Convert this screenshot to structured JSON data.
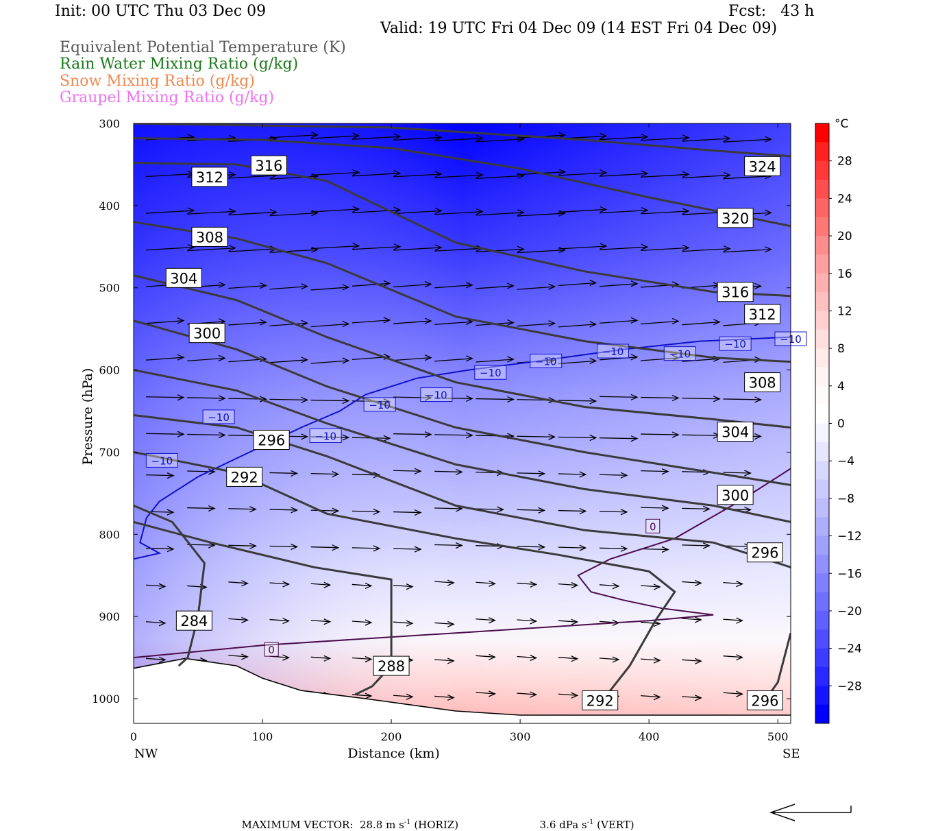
{
  "header": {
    "init": "Init: 00 UTC Thu 03 Dec 09",
    "fcst": "Fcst:   43 h",
    "valid": "Valid: 19 UTC Fri 04 Dec 09 (14 EST Fri 04 Dec 09)",
    "fields": [
      {
        "label": "Equivalent Potential Temperature (K)",
        "color": "#555555"
      },
      {
        "label": "Rain Water Mixing Ratio (g/kg)",
        "color": "#1a7a1a"
      },
      {
        "label": "Snow Mixing Ratio (g/kg)",
        "color": "#f08a50"
      },
      {
        "label": "Graupel Mixing Ratio (g/kg)",
        "color": "#f070f0"
      }
    ]
  },
  "footer": {
    "max_vector_label": "MAXIMUM VECTOR:",
    "horiz": "28.8 m s",
    "horiz_unit": "(HORIZ)",
    "vert": "3.6 dPa s",
    "vert_unit": "(VERT)",
    "exponent": "-1"
  },
  "chart_data": {
    "type": "cross-section",
    "xlabel": "Distance (km)",
    "ylabel": "Pressure (hPa)",
    "x_ticks": [
      0,
      100,
      200,
      300,
      400,
      500
    ],
    "x_range": [
      0,
      510
    ],
    "y_ticks": [
      300,
      400,
      500,
      600,
      700,
      800,
      900,
      1000
    ],
    "y_range": [
      300,
      1030
    ],
    "left_end_label": "NW",
    "right_end_label": "SE",
    "colorbar": {
      "unit": "°C",
      "labels": [
        28,
        24,
        20,
        16,
        12,
        8,
        4,
        0,
        -4,
        -8,
        -12,
        -16,
        -20,
        -24,
        -28
      ],
      "levels": [
        32,
        30,
        28,
        26,
        24,
        22,
        20,
        18,
        16,
        14,
        12,
        10,
        8,
        6,
        4,
        2,
        0,
        -2,
        -4,
        -6,
        -8,
        -10,
        -12,
        -14,
        -16,
        -18,
        -20,
        -22,
        -24,
        -26,
        -28,
        -30,
        -32
      ],
      "colors": [
        "#ff0000",
        "#ff2020",
        "#ff3838",
        "#ff4e4e",
        "#ff6464",
        "#ff7878",
        "#ff8c8c",
        "#ffa0a0",
        "#ffb0b0",
        "#ffc0c0",
        "#ffd0d0",
        "#ffdede",
        "#ffeaea",
        "#fff4f4",
        "#fffafa",
        "#ffffff",
        "#f4f4ff",
        "#e6e6ff",
        "#d8d8ff",
        "#cacaff",
        "#bcbcff",
        "#aeaeff",
        "#a0a0ff",
        "#9090ff",
        "#8080ff",
        "#7070ff",
        "#6060ff",
        "#4e4eff",
        "#3c3cff",
        "#2828ff",
        "#1414ff",
        "#0000ff"
      ]
    },
    "theta_e_contours": [
      {
        "value": 284,
        "points": [
          [
            0,
            765
          ],
          [
            30,
            785
          ],
          [
            55,
            835
          ],
          [
            50,
            900
          ],
          [
            42,
            950
          ],
          [
            35,
            960
          ]
        ],
        "label_at": [
          47,
          905
        ]
      },
      {
        "value": 288,
        "points": [
          [
            0,
            785
          ],
          [
            60,
            810
          ],
          [
            140,
            840
          ],
          [
            200,
            855
          ],
          [
            200,
            900
          ],
          [
            200,
            960
          ],
          [
            185,
            985
          ],
          [
            172,
            995
          ]
        ],
        "label_at": [
          200,
          960
        ]
      },
      {
        "value": 292,
        "points": [
          [
            0,
            700
          ],
          [
            80,
            725
          ],
          [
            150,
            775
          ],
          [
            250,
            805
          ],
          [
            330,
            825
          ],
          [
            400,
            845
          ],
          [
            420,
            870
          ],
          [
            405,
            905
          ],
          [
            385,
            960
          ],
          [
            365,
            1000
          ]
        ],
        "label_at": [
          362,
          1002
        ],
        "label2_at": [
          86,
          730
        ]
      },
      {
        "value": 296,
        "points": [
          [
            0,
            655
          ],
          [
            80,
            670
          ],
          [
            150,
            705
          ],
          [
            250,
            765
          ],
          [
            350,
            795
          ],
          [
            450,
            810
          ],
          [
            510,
            840
          ]
        ],
        "label_at": [
          490,
          822
        ],
        "label2_at": [
          107,
          685
        ],
        "tail": [
          [
            510,
            920
          ],
          [
            500,
            980
          ],
          [
            490,
            1002
          ]
        ],
        "tail_label_at": [
          490,
          1002
        ]
      },
      {
        "value": 300,
        "points": [
          [
            0,
            600
          ],
          [
            80,
            625
          ],
          [
            150,
            665
          ],
          [
            250,
            715
          ],
          [
            350,
            745
          ],
          [
            450,
            765
          ],
          [
            510,
            785
          ]
        ],
        "label_at": [
          467,
          752
        ],
        "label2_at": [
          57,
          555
        ]
      },
      {
        "value": 304,
        "points": [
          [
            0,
            540
          ],
          [
            80,
            575
          ],
          [
            150,
            620
          ],
          [
            250,
            670
          ],
          [
            350,
            700
          ],
          [
            450,
            725
          ],
          [
            510,
            740
          ]
        ],
        "label_at": [
          467,
          675
        ],
        "label2_at": [
          39,
          488
        ]
      },
      {
        "value": 308,
        "points": [
          [
            0,
            485
          ],
          [
            80,
            515
          ],
          [
            150,
            560
          ],
          [
            250,
            615
          ],
          [
            350,
            645
          ],
          [
            450,
            660
          ],
          [
            510,
            670
          ]
        ],
        "label_at": [
          488,
          615
        ],
        "label2_at": [
          59,
          438
        ]
      },
      {
        "value": 312,
        "points": [
          [
            0,
            420
          ],
          [
            80,
            440
          ],
          [
            150,
            470
          ],
          [
            250,
            535
          ],
          [
            350,
            565
          ],
          [
            450,
            585
          ],
          [
            510,
            590
          ]
        ],
        "label_at": [
          488,
          532
        ],
        "label2_at": [
          59,
          365
        ]
      },
      {
        "value": 316,
        "points": [
          [
            0,
            348
          ],
          [
            80,
            350
          ],
          [
            150,
            370
          ],
          [
            250,
            445
          ],
          [
            350,
            480
          ],
          [
            450,
            505
          ],
          [
            510,
            510
          ]
        ],
        "label_at": [
          467,
          505
        ],
        "label2_at": [
          105,
          351
        ]
      },
      {
        "value": 320,
        "points": [
          [
            0,
            318
          ],
          [
            100,
            320
          ],
          [
            200,
            330
          ],
          [
            300,
            355
          ],
          [
            400,
            390
          ],
          [
            510,
            425
          ]
        ],
        "label_at": [
          467,
          415
        ]
      },
      {
        "value": 324,
        "points": [
          [
            0,
            300
          ],
          [
            200,
            305
          ],
          [
            350,
            320
          ],
          [
            450,
            333
          ],
          [
            510,
            340
          ]
        ],
        "label_at": [
          488,
          352
        ]
      }
    ],
    "isotherms": [
      {
        "value": -10,
        "color": "#1010c8",
        "points": [
          [
            0,
            830
          ],
          [
            20,
            823
          ],
          [
            5,
            810
          ],
          [
            10,
            780
          ],
          [
            20,
            760
          ],
          [
            50,
            730
          ],
          [
            90,
            700
          ],
          [
            130,
            670
          ],
          [
            160,
            650
          ],
          [
            180,
            630
          ],
          [
            220,
            610
          ],
          [
            260,
            600
          ],
          [
            310,
            590
          ],
          [
            380,
            575
          ],
          [
            440,
            565
          ],
          [
            510,
            560
          ]
        ],
        "labels": [
          [
            22,
            710
          ],
          [
            66,
            657
          ],
          [
            149,
            680
          ],
          [
            191,
            642
          ],
          [
            235,
            630
          ],
          [
            277,
            603
          ],
          [
            320,
            589
          ],
          [
            372,
            577
          ],
          [
            424,
            580
          ],
          [
            467,
            568
          ],
          [
            510,
            562
          ]
        ]
      },
      {
        "value": 0,
        "color": "#4a0c4a",
        "points": [
          [
            0,
            950
          ],
          [
            100,
            935
          ],
          [
            200,
            925
          ],
          [
            250,
            920
          ],
          [
            300,
            915
          ],
          [
            400,
            905
          ],
          [
            450,
            898
          ],
          [
            410,
            890
          ],
          [
            380,
            880
          ],
          [
            355,
            870
          ],
          [
            345,
            850
          ],
          [
            370,
            830
          ],
          [
            420,
            805
          ],
          [
            470,
            760
          ],
          [
            510,
            720
          ]
        ],
        "labels": [
          [
            107,
            940
          ],
          [
            403,
            790
          ]
        ]
      }
    ],
    "terrain": [
      [
        0,
        963
      ],
      [
        40,
        951
      ],
      [
        80,
        960
      ],
      [
        100,
        975
      ],
      [
        130,
        990
      ],
      [
        180,
        1000
      ],
      [
        250,
        1015
      ],
      [
        300,
        1020
      ],
      [
        400,
        1020
      ],
      [
        510,
        1020
      ]
    ]
  }
}
